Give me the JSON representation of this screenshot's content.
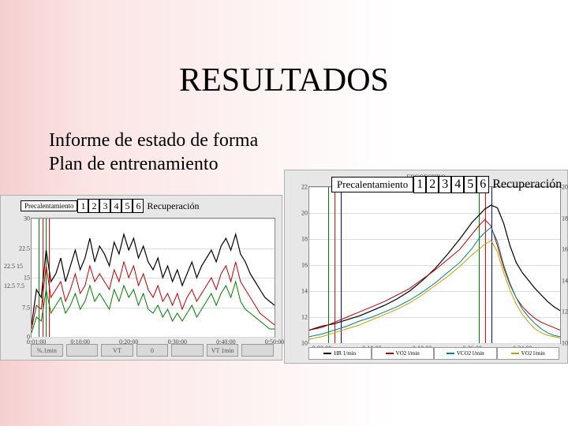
{
  "title": "RESULTADOS",
  "sub1": "Informe de estado de forma",
  "sub2": "Plan de entrenamiento",
  "left_overlay": {
    "warmup": "Precalentamiento",
    "nums": [
      "1",
      "2",
      "3",
      "4",
      "5",
      "6"
    ],
    "recov": "Recuperación"
  },
  "right_overlay": {
    "warmup": "Precalentamiento",
    "nums": [
      "1",
      "2",
      "3",
      "4",
      "5",
      "6"
    ],
    "recov": "Recuperación"
  },
  "left_chart": {
    "type": "line",
    "background_color": "#e7e7e7",
    "plot_bg": "#ffffff",
    "grid_color": "#dcdcdc",
    "ylim": [
      0,
      30
    ],
    "yticks": [
      0,
      7.5,
      15,
      22.5,
      30
    ],
    "ytick_labels_left": [
      "",
      "12.5",
      "25",
      "",
      ""
    ],
    "ytick_labels_left2": [
      "",
      "7.5",
      "15",
      "22.5",
      ""
    ],
    "xlim": [
      0,
      50
    ],
    "xticks": [
      1,
      10,
      20,
      30,
      40,
      50
    ],
    "xtick_labels": [
      "0:01:00",
      "0:10:00",
      "0:20:00",
      "0:30:00",
      "0:40:00",
      "0:50:00"
    ],
    "vlines": [
      {
        "x": 1.5,
        "color": "#008000"
      },
      {
        "x": 2.2,
        "color": "#ff0000"
      },
      {
        "x": 3.0,
        "color": "#008000"
      },
      {
        "x": 3.5,
        "color": "#ff0000"
      }
    ],
    "series": [
      {
        "name": "black",
        "color": "#000000",
        "width": 1.2,
        "pts": [
          [
            0,
            3
          ],
          [
            1,
            12
          ],
          [
            2,
            10
          ],
          [
            3,
            22
          ],
          [
            4,
            14
          ],
          [
            5,
            16
          ],
          [
            6,
            20
          ],
          [
            7,
            14
          ],
          [
            8,
            18
          ],
          [
            9,
            22
          ],
          [
            10,
            17
          ],
          [
            11,
            20
          ],
          [
            12,
            25
          ],
          [
            13,
            19
          ],
          [
            14,
            23
          ],
          [
            15,
            21
          ],
          [
            16,
            18
          ],
          [
            17,
            24
          ],
          [
            18,
            21
          ],
          [
            19,
            26
          ],
          [
            20,
            22
          ],
          [
            21,
            25
          ],
          [
            22,
            20
          ],
          [
            23,
            23
          ],
          [
            24,
            19
          ],
          [
            25,
            17
          ],
          [
            26,
            20
          ],
          [
            27,
            15
          ],
          [
            28,
            18
          ],
          [
            29,
            14
          ],
          [
            30,
            17
          ],
          [
            31,
            13
          ],
          [
            32,
            16
          ],
          [
            33,
            19
          ],
          [
            34,
            15
          ],
          [
            35,
            18
          ],
          [
            36,
            20
          ],
          [
            37,
            22
          ],
          [
            38,
            19
          ],
          [
            39,
            23
          ],
          [
            40,
            25
          ],
          [
            41,
            22
          ],
          [
            42,
            26
          ],
          [
            43,
            21
          ],
          [
            44,
            19
          ],
          [
            45,
            16
          ],
          [
            46,
            14
          ],
          [
            47,
            12
          ],
          [
            48,
            10
          ],
          [
            49,
            9
          ],
          [
            50,
            8
          ]
        ]
      },
      {
        "name": "red",
        "color": "#c00000",
        "width": 1.0,
        "pts": [
          [
            0,
            2
          ],
          [
            1,
            8
          ],
          [
            2,
            7
          ],
          [
            3,
            18
          ],
          [
            4,
            10
          ],
          [
            5,
            12
          ],
          [
            6,
            14
          ],
          [
            7,
            9
          ],
          [
            8,
            12
          ],
          [
            9,
            16
          ],
          [
            10,
            11
          ],
          [
            11,
            13
          ],
          [
            12,
            18
          ],
          [
            13,
            14
          ],
          [
            14,
            16
          ],
          [
            15,
            14
          ],
          [
            16,
            12
          ],
          [
            17,
            17
          ],
          [
            18,
            14
          ],
          [
            19,
            19
          ],
          [
            20,
            15
          ],
          [
            21,
            18
          ],
          [
            22,
            13
          ],
          [
            23,
            16
          ],
          [
            24,
            12
          ],
          [
            25,
            10
          ],
          [
            26,
            13
          ],
          [
            27,
            9
          ],
          [
            28,
            11
          ],
          [
            29,
            8
          ],
          [
            30,
            11
          ],
          [
            31,
            7
          ],
          [
            32,
            10
          ],
          [
            33,
            12
          ],
          [
            34,
            9
          ],
          [
            35,
            11
          ],
          [
            36,
            13
          ],
          [
            37,
            15
          ],
          [
            38,
            12
          ],
          [
            39,
            16
          ],
          [
            40,
            18
          ],
          [
            41,
            14
          ],
          [
            42,
            19
          ],
          [
            43,
            14
          ],
          [
            44,
            12
          ],
          [
            45,
            10
          ],
          [
            46,
            8
          ],
          [
            47,
            6
          ],
          [
            48,
            5
          ],
          [
            49,
            4
          ],
          [
            50,
            3
          ]
        ]
      },
      {
        "name": "green",
        "color": "#008000",
        "width": 1.0,
        "pts": [
          [
            0,
            1
          ],
          [
            1,
            5
          ],
          [
            2,
            4
          ],
          [
            3,
            12
          ],
          [
            4,
            6
          ],
          [
            5,
            8
          ],
          [
            6,
            10
          ],
          [
            7,
            6
          ],
          [
            8,
            8
          ],
          [
            9,
            11
          ],
          [
            10,
            7
          ],
          [
            11,
            9
          ],
          [
            12,
            13
          ],
          [
            13,
            9
          ],
          [
            14,
            11
          ],
          [
            15,
            9
          ],
          [
            16,
            7
          ],
          [
            17,
            12
          ],
          [
            18,
            9
          ],
          [
            19,
            13
          ],
          [
            20,
            10
          ],
          [
            21,
            12
          ],
          [
            22,
            8
          ],
          [
            23,
            11
          ],
          [
            24,
            7
          ],
          [
            25,
            6
          ],
          [
            26,
            8
          ],
          [
            27,
            5
          ],
          [
            28,
            7
          ],
          [
            29,
            4
          ],
          [
            30,
            6
          ],
          [
            31,
            4
          ],
          [
            32,
            6
          ],
          [
            33,
            8
          ],
          [
            34,
            5
          ],
          [
            35,
            7
          ],
          [
            36,
            9
          ],
          [
            37,
            11
          ],
          [
            38,
            8
          ],
          [
            39,
            11
          ],
          [
            40,
            13
          ],
          [
            41,
            10
          ],
          [
            42,
            14
          ],
          [
            43,
            9
          ],
          [
            44,
            7
          ],
          [
            45,
            6
          ],
          [
            46,
            5
          ],
          [
            47,
            4
          ],
          [
            48,
            3
          ],
          [
            49,
            2
          ],
          [
            50,
            2
          ]
        ]
      }
    ],
    "legend": [
      "%.1min",
      "",
      "VT",
      "0",
      "",
      "VT 1min",
      ""
    ]
  },
  "right_chart": {
    "type": "line",
    "background_color": "#e7e7e7",
    "plot_bg": "#ffffff",
    "grid_color": "#dcdcdc",
    "top_label": "ERGOESPIRO",
    "ylim": [
      10,
      22
    ],
    "yticks": [
      10,
      12,
      14,
      16,
      18,
      20,
      22
    ],
    "ylim2": [
      100,
      200
    ],
    "yticks2": [
      100,
      120,
      140,
      160,
      180,
      200
    ],
    "xlim": [
      0,
      40
    ],
    "xticks": [
      2,
      10,
      18,
      26,
      34
    ],
    "xtick_labels": [
      "0:02:00",
      "0:10:00",
      "0:18:00",
      "0:26:00",
      "0:34:00"
    ],
    "vlines": [
      {
        "x": 3,
        "color": "#008000"
      },
      {
        "x": 4,
        "color": "#ff0000"
      },
      {
        "x": 5,
        "color": "#0000d0"
      },
      {
        "x": 27,
        "color": "#008000"
      },
      {
        "x": 28,
        "color": "#ff0000"
      },
      {
        "x": 29,
        "color": "#0000d0"
      }
    ],
    "series": [
      {
        "name": "hr_black",
        "color": "#000000",
        "width": 1.2,
        "pts": [
          [
            0,
            11
          ],
          [
            2,
            11.3
          ],
          [
            4,
            11.5
          ],
          [
            6,
            11.8
          ],
          [
            8,
            12.1
          ],
          [
            10,
            12.5
          ],
          [
            12,
            12.9
          ],
          [
            14,
            13.4
          ],
          [
            16,
            14.0
          ],
          [
            18,
            14.8
          ],
          [
            20,
            15.7
          ],
          [
            22,
            16.8
          ],
          [
            24,
            18.0
          ],
          [
            26,
            19.3
          ],
          [
            27,
            19.8
          ],
          [
            28,
            20.3
          ],
          [
            29,
            20.6
          ],
          [
            30,
            20.4
          ],
          [
            31,
            19.2
          ],
          [
            32,
            17.5
          ],
          [
            33,
            16.2
          ],
          [
            34,
            15.4
          ],
          [
            35,
            14.8
          ],
          [
            36,
            14.2
          ],
          [
            37,
            13.7
          ],
          [
            38,
            13.2
          ],
          [
            39,
            12.8
          ],
          [
            40,
            12.5
          ]
        ]
      },
      {
        "name": "vo2_red",
        "color": "#c00000",
        "width": 1.0,
        "pts": [
          [
            0,
            11
          ],
          [
            2,
            11.2
          ],
          [
            4,
            11.6
          ],
          [
            6,
            12.0
          ],
          [
            8,
            12.4
          ],
          [
            10,
            12.8
          ],
          [
            12,
            13.2
          ],
          [
            14,
            13.7
          ],
          [
            16,
            14.2
          ],
          [
            18,
            14.9
          ],
          [
            20,
            15.6
          ],
          [
            22,
            16.4
          ],
          [
            24,
            17.2
          ],
          [
            26,
            18.4
          ],
          [
            27,
            19.0
          ],
          [
            28,
            19.5
          ],
          [
            29,
            19.0
          ],
          [
            30,
            17.5
          ],
          [
            31,
            15.8
          ],
          [
            32,
            14.5
          ],
          [
            33,
            13.5
          ],
          [
            34,
            12.8
          ],
          [
            35,
            12.3
          ],
          [
            36,
            11.9
          ],
          [
            37,
            11.6
          ],
          [
            38,
            11.4
          ],
          [
            39,
            11.2
          ],
          [
            40,
            11.0
          ]
        ]
      },
      {
        "name": "vco2_teal",
        "color": "#008080",
        "width": 1.0,
        "pts": [
          [
            0,
            10.5
          ],
          [
            2,
            10.7
          ],
          [
            4,
            11.0
          ],
          [
            6,
            11.3
          ],
          [
            8,
            11.7
          ],
          [
            10,
            12.0
          ],
          [
            12,
            12.4
          ],
          [
            14,
            12.8
          ],
          [
            16,
            13.3
          ],
          [
            18,
            13.9
          ],
          [
            20,
            14.6
          ],
          [
            22,
            15.4
          ],
          [
            24,
            16.2
          ],
          [
            26,
            17.3
          ],
          [
            27,
            18.0
          ],
          [
            28,
            18.5
          ],
          [
            29,
            18.9
          ],
          [
            30,
            17.8
          ],
          [
            31,
            16.0
          ],
          [
            32,
            14.6
          ],
          [
            33,
            13.5
          ],
          [
            34,
            12.6
          ],
          [
            35,
            12.0
          ],
          [
            36,
            11.5
          ],
          [
            37,
            11.1
          ],
          [
            38,
            10.8
          ],
          [
            39,
            10.6
          ],
          [
            40,
            10.5
          ]
        ]
      },
      {
        "name": "vent_gold",
        "color": "#bfa000",
        "width": 1.0,
        "pts": [
          [
            0,
            10.3
          ],
          [
            2,
            10.5
          ],
          [
            4,
            10.8
          ],
          [
            6,
            11.1
          ],
          [
            8,
            11.4
          ],
          [
            10,
            11.8
          ],
          [
            12,
            12.2
          ],
          [
            14,
            12.6
          ],
          [
            16,
            13.1
          ],
          [
            18,
            13.7
          ],
          [
            20,
            14.4
          ],
          [
            22,
            15.1
          ],
          [
            24,
            15.9
          ],
          [
            26,
            16.8
          ],
          [
            27,
            17.2
          ],
          [
            28,
            17.6
          ],
          [
            29,
            17.9
          ],
          [
            30,
            17.0
          ],
          [
            31,
            15.4
          ],
          [
            32,
            14.1
          ],
          [
            33,
            13.0
          ],
          [
            34,
            12.2
          ],
          [
            35,
            11.6
          ],
          [
            36,
            11.1
          ],
          [
            37,
            10.8
          ],
          [
            38,
            10.6
          ],
          [
            39,
            10.5
          ],
          [
            40,
            10.4
          ]
        ]
      }
    ],
    "legend": [
      {
        "label": "HR 1/min",
        "color": "#000000"
      },
      {
        "label": "VO2 l/min",
        "color": "#c00000"
      },
      {
        "label": "VCO2 l/min",
        "color": "#008080"
      },
      {
        "label": "VO2 l/min",
        "color": "#bfa000"
      }
    ]
  }
}
